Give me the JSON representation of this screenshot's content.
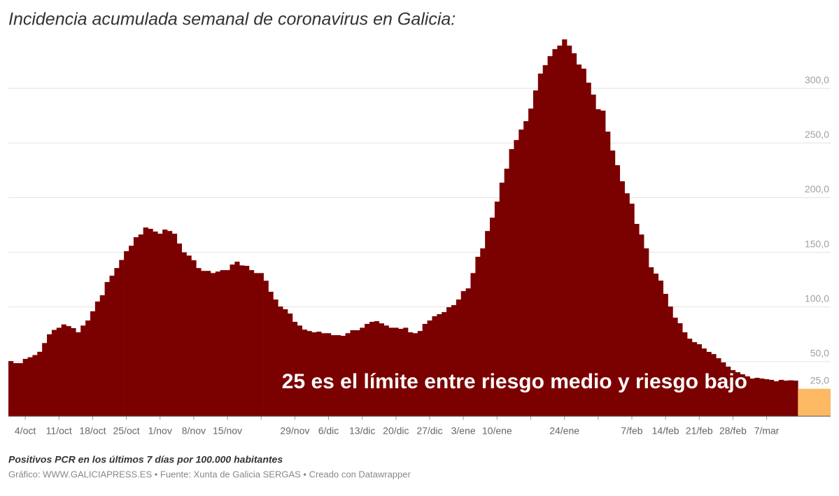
{
  "chart_data": {
    "type": "bar",
    "title": "Incidencia acumulada semanal de coronavirus en Galicia:",
    "subtitle": "Positivos PCR en los últimos 7 días por 100.000 habitantes",
    "source": "Gráfico: WWW.GALICIAPRESS.ES • Fuente: Xunta de Galicia SERGAS • Creado con Datawrapper",
    "annotation": "25 es el límite entre riesgo medio y riesgo bajo",
    "color": "#7b0000",
    "threshold": 25,
    "threshold_color": "#fdb863",
    "grid": true,
    "ylim": [
      0,
      345
    ],
    "yticks": [
      {
        "value": 25,
        "label": "25,0"
      },
      {
        "value": 50,
        "label": "50,0"
      },
      {
        "value": 100,
        "label": "100,0"
      },
      {
        "value": 150,
        "label": "150,0"
      },
      {
        "value": 200,
        "label": "200,0"
      },
      {
        "value": 250,
        "label": "250,0"
      },
      {
        "value": 300,
        "label": "300,0"
      }
    ],
    "categories": [
      null,
      null,
      null,
      "4/oct",
      null,
      null,
      null,
      null,
      null,
      null,
      "11/oct",
      null,
      null,
      null,
      null,
      null,
      null,
      "18/oct",
      null,
      null,
      null,
      null,
      null,
      null,
      "25/oct",
      null,
      null,
      null,
      null,
      null,
      null,
      "1/nov",
      null,
      null,
      null,
      null,
      null,
      null,
      "8/nov",
      null,
      null,
      null,
      null,
      null,
      null,
      "15/nov",
      null,
      null,
      null,
      null,
      null,
      null,
      null,
      null,
      null,
      null,
      null,
      null,
      null,
      "29/nov",
      null,
      null,
      null,
      null,
      null,
      null,
      "6/dic",
      null,
      null,
      null,
      null,
      null,
      null,
      "13/dic",
      null,
      null,
      null,
      null,
      null,
      null,
      "20/dic",
      null,
      null,
      null,
      null,
      null,
      null,
      "27/dic",
      null,
      null,
      null,
      null,
      null,
      null,
      "3/ene",
      null,
      null,
      null,
      null,
      null,
      null,
      "10/ene",
      null,
      null,
      null,
      null,
      null,
      null,
      null,
      null,
      null,
      null,
      null,
      null,
      null,
      "24/ene",
      null,
      null,
      null,
      null,
      null,
      null,
      null,
      null,
      null,
      null,
      null,
      null,
      null,
      "7/feb",
      null,
      null,
      null,
      null,
      null,
      null,
      "14/feb",
      null,
      null,
      null,
      null,
      null,
      null,
      "21/feb",
      null,
      null,
      null,
      null,
      null,
      null,
      "28/feb",
      null,
      null,
      null,
      null,
      null,
      null,
      "7/mar",
      null,
      null,
      null,
      null,
      null,
      null
    ],
    "values": [
      50.5,
      48.6,
      48.6,
      52.5,
      54,
      56,
      59,
      67,
      75,
      79,
      81,
      84,
      82.5,
      80.6,
      76.8,
      83,
      87.6,
      96,
      105,
      110.7,
      122.8,
      128.6,
      135.6,
      143,
      151,
      156,
      163.8,
      166.3,
      172.7,
      171.5,
      169,
      167,
      170.8,
      169.5,
      167,
      158,
      150,
      147,
      142.7,
      135.6,
      133,
      133,
      131,
      132.4,
      133.7,
      133.7,
      138.8,
      141.4,
      138,
      137.6,
      133.7,
      131,
      131,
      124,
      113.9,
      106.8,
      100.4,
      97.9,
      94,
      86.4,
      83,
      79.3,
      78,
      76.8,
      77.4,
      76,
      76,
      74.2,
      74.2,
      73.6,
      76,
      78.7,
      78.7,
      81,
      84.5,
      86.4,
      87,
      85,
      83,
      81,
      81,
      80,
      81,
      76.8,
      76,
      78,
      84.5,
      87.6,
      91.5,
      93.4,
      95.3,
      99.8,
      101.7,
      106.8,
      114.5,
      117,
      131,
      145.9,
      153.6,
      169.5,
      181.7,
      196.4,
      213.7,
      226.5,
      244.4,
      252.7,
      262.3,
      270,
      281.5,
      298.1,
      313.5,
      321.2,
      329.5,
      335.9,
      339.1,
      344.8,
      339.1,
      332.1,
      321.8,
      318,
      305.2,
      294.3,
      280.9,
      279.6,
      260.4,
      243.1,
      229.7,
      215,
      204,
      194.5,
      176,
      166.3,
      153.6,
      136.3,
      130.5,
      124.1,
      112,
      100.4,
      90.2,
      85.1,
      76.8,
      71,
      67.8,
      65.9,
      62,
      58.9,
      56.9,
      53.1,
      49.3,
      45.4,
      42.2,
      40.3,
      38.4,
      36.5,
      34.5,
      35.2,
      34.5,
      33.9,
      33.3,
      32,
      33.3,
      32.6,
      32.9,
      32.6
    ]
  }
}
